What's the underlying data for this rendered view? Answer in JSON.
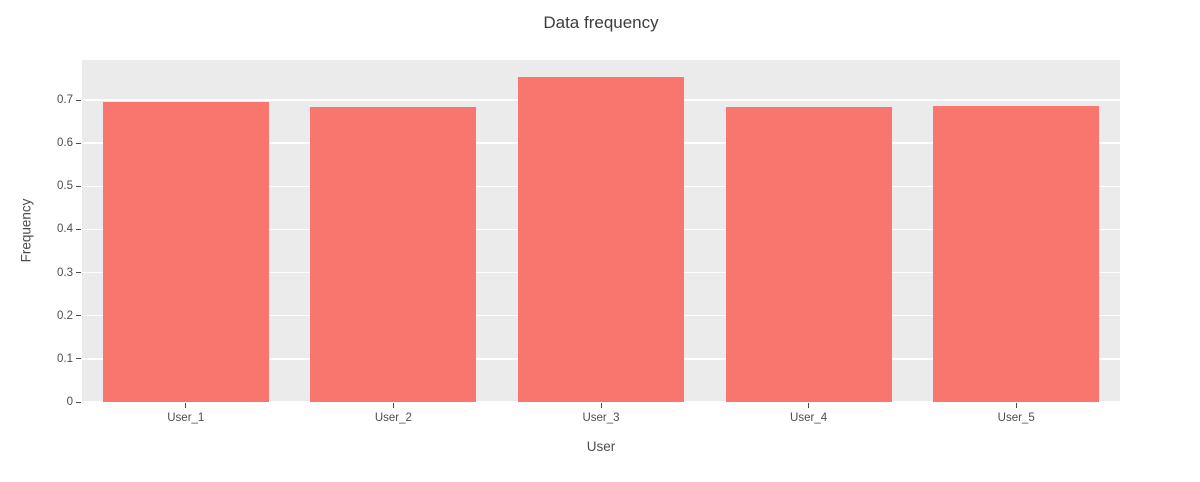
{
  "page": {
    "background": "#ffffff"
  },
  "chart_data": {
    "type": "bar",
    "title": "Data frequency",
    "xlabel": "User",
    "ylabel": "Frequency",
    "categories": [
      "User_1",
      "User_2",
      "User_3",
      "User_4",
      "User_5"
    ],
    "values": [
      0.695,
      0.683,
      0.753,
      0.685,
      0.687
    ],
    "yticks": [
      0,
      0.1,
      0.2,
      0.3,
      0.4,
      0.5,
      0.6,
      0.7
    ],
    "ytick_labels": [
      "0",
      "0.1",
      "0.2",
      "0.3",
      "0.4",
      "0.5",
      "0.6",
      "0.7"
    ],
    "ylim": [
      0,
      0.793
    ],
    "grid": true,
    "legend": "none",
    "bar_color": "#f8766d",
    "plot_bg": "#ebebeb",
    "grid_color": "#ffffff",
    "tick_color": "#4d4d4d",
    "title_color": "#3d3d3d",
    "bar_gap_fraction": 0.2
  }
}
